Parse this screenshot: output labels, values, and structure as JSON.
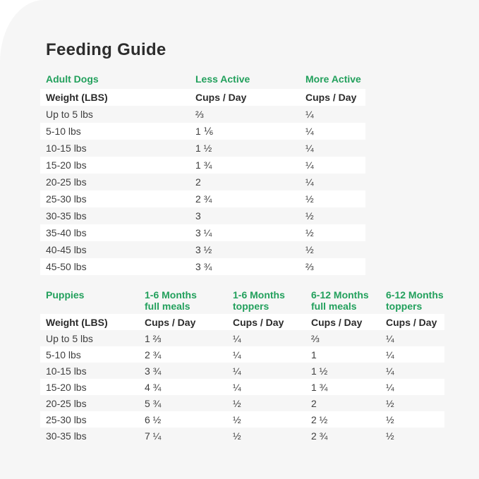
{
  "title": "Feeding Guide",
  "colors": {
    "background_panel": "#f6f6f6",
    "outside_corner": "#ffffff",
    "accent_green": "#22a05c",
    "heading_text": "#2d2d2d",
    "body_text": "#3e3e3e",
    "row_stripe": "#ffffff"
  },
  "chart_data": [
    {
      "type": "table",
      "section": "Adult Dogs",
      "group_headers": [
        [
          "Adult Dogs"
        ],
        [
          "Less Active"
        ],
        [
          "More Active"
        ]
      ],
      "sub_headers": [
        "Weight (LBS)",
        "Cups / Day",
        "Cups / Day"
      ],
      "rows": [
        [
          "Up to 5 lbs",
          "⅔",
          "¼"
        ],
        [
          "5-10 lbs",
          "1 ⅙",
          "¼"
        ],
        [
          "10-15 lbs",
          "1 ½",
          "¼"
        ],
        [
          "15-20 lbs",
          "1 ¾",
          "¼"
        ],
        [
          "20-25 lbs",
          "2",
          "¼"
        ],
        [
          "25-30 lbs",
          "2 ¾",
          "½"
        ],
        [
          "30-35 lbs",
          "3",
          "½"
        ],
        [
          "35-40 lbs",
          "3 ¼",
          "½"
        ],
        [
          "40-45 lbs",
          "3 ½",
          "½"
        ],
        [
          "45-50 lbs",
          "3 ¾",
          "⅔"
        ]
      ]
    },
    {
      "type": "table",
      "section": "Puppies",
      "group_headers": [
        [
          "Puppies"
        ],
        [
          "1-6 Months",
          "full meals"
        ],
        [
          "1-6 Months",
          "toppers"
        ],
        [
          "6-12 Months",
          "full meals"
        ],
        [
          "6-12 Months",
          "toppers"
        ]
      ],
      "sub_headers": [
        "Weight (LBS)",
        "Cups / Day",
        "Cups / Day",
        "Cups / Day",
        "Cups / Day"
      ],
      "rows": [
        [
          "Up to 5 lbs",
          "1 ⅔",
          "¼",
          "⅔",
          "¼"
        ],
        [
          "5-10 lbs",
          "2 ¾",
          "¼",
          "1",
          "¼"
        ],
        [
          "10-15 lbs",
          "3 ¾",
          "¼",
          "1 ½",
          "¼"
        ],
        [
          "15-20 lbs",
          "4 ¾",
          "¼",
          "1 ¾",
          "¼"
        ],
        [
          "20-25 lbs",
          "5 ¾",
          "½",
          "2",
          "½"
        ],
        [
          "25-30 lbs",
          "6 ½",
          "½",
          "2 ½",
          "½"
        ],
        [
          "30-35 lbs",
          "7 ¼",
          "½",
          "2 ¾",
          "½"
        ]
      ]
    }
  ]
}
